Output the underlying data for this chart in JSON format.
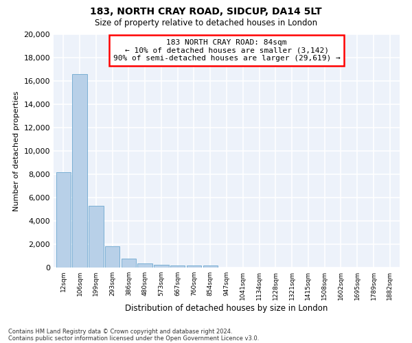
{
  "title1": "183, NORTH CRAY ROAD, SIDCUP, DA14 5LT",
  "title2": "Size of property relative to detached houses in London",
  "xlabel": "Distribution of detached houses by size in London",
  "ylabel": "Number of detached properties",
  "bar_labels": [
    "12sqm",
    "106sqm",
    "199sqm",
    "293sqm",
    "386sqm",
    "480sqm",
    "573sqm",
    "667sqm",
    "760sqm",
    "854sqm",
    "947sqm",
    "1041sqm",
    "1134sqm",
    "1228sqm",
    "1321sqm",
    "1415sqm",
    "1508sqm",
    "1602sqm",
    "1695sqm",
    "1789sqm",
    "1882sqm"
  ],
  "bar_values": [
    8150,
    16600,
    5300,
    1800,
    750,
    380,
    250,
    200,
    180,
    150,
    0,
    0,
    0,
    0,
    0,
    0,
    0,
    0,
    0,
    0,
    0
  ],
  "bar_color": "#b8d0e8",
  "bar_edge_color": "#7aafd4",
  "ylim": [
    0,
    20000
  ],
  "yticks": [
    0,
    2000,
    4000,
    6000,
    8000,
    10000,
    12000,
    14000,
    16000,
    18000,
    20000
  ],
  "annotation_line1": "183 NORTH CRAY ROAD: 84sqm",
  "annotation_line2": "← 10% of detached houses are smaller (3,142)",
  "annotation_line3": "90% of semi-detached houses are larger (29,619) →",
  "annotation_box_color": "red",
  "footnote1": "Contains HM Land Registry data © Crown copyright and database right 2024.",
  "footnote2": "Contains public sector information licensed under the Open Government Licence v3.0.",
  "background_color": "#edf2fa",
  "grid_color": "#ffffff",
  "fig_bg_color": "#ffffff"
}
